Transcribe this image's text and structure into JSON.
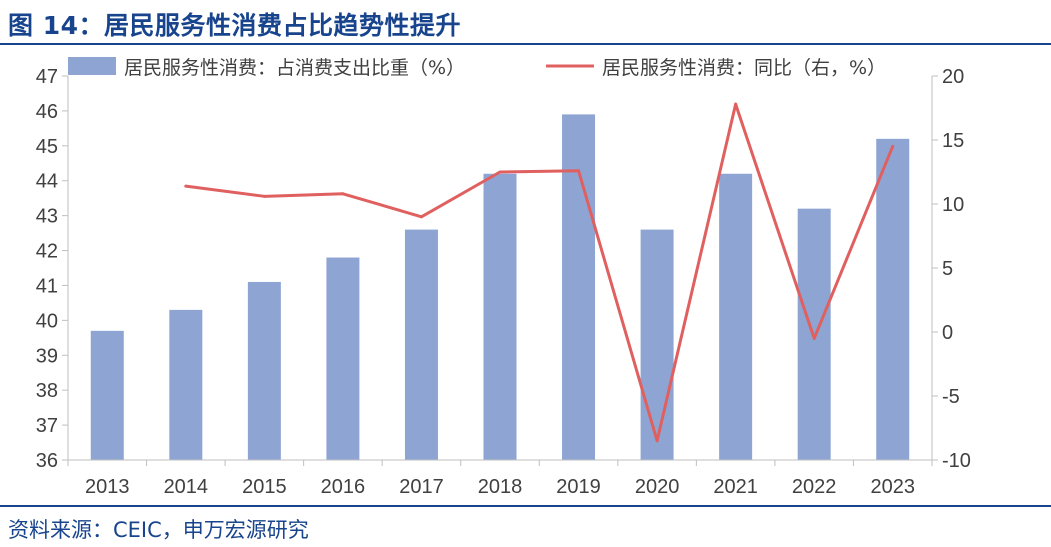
{
  "figure": {
    "title": "图 14：居民服务性消费占比趋势性提升",
    "source": "资料来源：CEIC，申万宏源研究"
  },
  "colors": {
    "bar": "#8ea5d3",
    "line": "#e06060",
    "axis": "#bfbfbf",
    "text": "#404040",
    "brand": "#17448d"
  },
  "chart_data": {
    "type": "bar",
    "categories": [
      "2013",
      "2014",
      "2015",
      "2016",
      "2017",
      "2018",
      "2019",
      "2020",
      "2021",
      "2022",
      "2023"
    ],
    "series": [
      {
        "name": "居民服务性消费：占消费支出比重（%）",
        "type": "bar",
        "axis": "left",
        "values": [
          39.7,
          40.3,
          41.1,
          41.8,
          42.6,
          44.2,
          45.9,
          42.6,
          44.2,
          43.2,
          45.2
        ]
      },
      {
        "name": "居民服务性消费：同比（右，%）",
        "type": "line",
        "axis": "right",
        "values": [
          null,
          11.4,
          10.6,
          10.8,
          9.0,
          12.5,
          12.6,
          -8.5,
          17.8,
          -0.5,
          14.5
        ]
      }
    ],
    "y_left": {
      "range": [
        36,
        47
      ],
      "ticks": [
        "36",
        "37",
        "38",
        "39",
        "40",
        "41",
        "42",
        "43",
        "44",
        "45",
        "46",
        "47"
      ]
    },
    "y_right": {
      "range": [
        -10,
        20
      ],
      "ticks": [
        "-10",
        "-5",
        "0",
        "5",
        "10",
        "15",
        "20"
      ]
    },
    "grid": false,
    "legend_position": "top"
  }
}
